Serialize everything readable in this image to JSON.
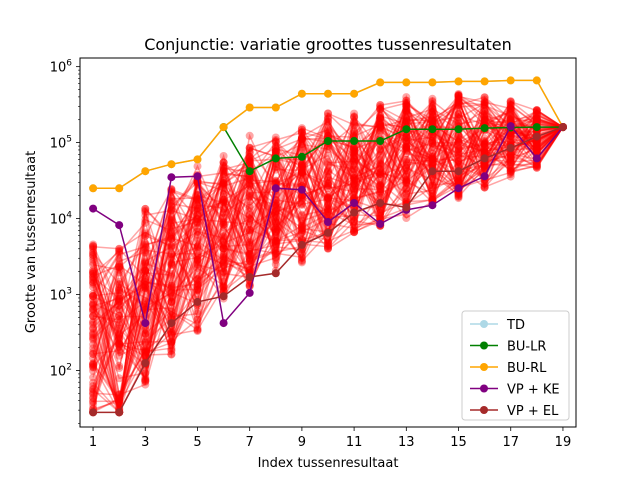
{
  "chart_data": {
    "type": "line",
    "title": "Conjunctie: variatie groottes tussenresultaten",
    "xlabel": "Index tussenresultaat",
    "ylabel": "Grootte van tussenresultaat",
    "yscale": "log",
    "xlim": [
      0.5,
      19.5
    ],
    "ylim": [
      18,
      1300000
    ],
    "xticks": [
      1,
      3,
      5,
      7,
      9,
      11,
      13,
      15,
      17,
      19
    ],
    "yticks": [
      {
        "value": 100,
        "base": "10",
        "exp": "2"
      },
      {
        "value": 1000,
        "base": "10",
        "exp": "3"
      },
      {
        "value": 10000,
        "base": "10",
        "exp": "4"
      },
      {
        "value": 100000,
        "base": "10",
        "exp": "5"
      },
      {
        "value": 1000000,
        "base": "10",
        "exp": "6"
      }
    ],
    "grid": false,
    "legend_position": "lower-right",
    "background_series": {
      "color": "#ff0000",
      "count": 90,
      "final_value": 160000
    },
    "series": [
      {
        "name": "TD",
        "color": "#add8e6",
        "values": [
          25000,
          25000,
          42000,
          52000,
          60000,
          160000,
          290000,
          290000,
          440000,
          440000,
          440000,
          620000,
          620000,
          620000,
          640000,
          640000,
          660000,
          660000,
          160000
        ]
      },
      {
        "name": "BU-LR",
        "color": "#008000",
        "values": [
          null,
          null,
          null,
          null,
          null,
          160000,
          42000,
          62000,
          65000,
          105000,
          105000,
          105000,
          150000,
          150000,
          150000,
          155000,
          158000,
          160000,
          160000
        ]
      },
      {
        "name": "BU-RL",
        "color": "#ffa500",
        "values": [
          25000,
          25000,
          42000,
          52000,
          60000,
          160000,
          290000,
          290000,
          440000,
          440000,
          440000,
          620000,
          620000,
          620000,
          640000,
          640000,
          660000,
          660000,
          160000
        ]
      },
      {
        "name": "VP + KE",
        "color": "#800080",
        "values": [
          13500,
          8200,
          420,
          35000,
          36000,
          420,
          1050,
          25000,
          24000,
          9000,
          16000,
          8500,
          13000,
          15000,
          25000,
          36000,
          165000,
          62000,
          160000
        ]
      },
      {
        "name": "VP + EL",
        "color": "#a52a2a",
        "values": [
          28,
          28,
          125,
          420,
          800,
          950,
          1700,
          1900,
          4500,
          6500,
          12000,
          16000,
          14000,
          42000,
          42000,
          62000,
          85000,
          120000,
          160000
        ]
      }
    ]
  }
}
